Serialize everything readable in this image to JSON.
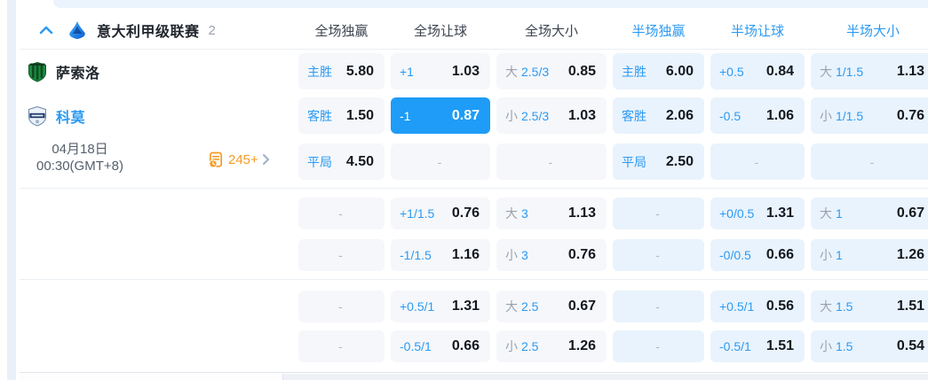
{
  "colors": {
    "accent_blue": "#2b9af3",
    "selected_cell_bg": "#1e9cf7",
    "markets_orange": "#f59a23",
    "home_badge_green": "#1b8a3f",
    "away_badge_navy": "#1d3a6b"
  },
  "header": {
    "league_title": "意大利甲级联赛",
    "match_count": "2",
    "columns": [
      "全场独赢",
      "全场让球",
      "全场大小",
      "半场独赢",
      "半场让球",
      "半场大小"
    ]
  },
  "match": {
    "home_team": "萨索洛",
    "away_team": "科莫",
    "date": "04月18日",
    "time": "00:30(GMT+8)",
    "more_markets": "245+"
  },
  "odds_rows": [
    {
      "cells": [
        {
          "label": "主胜",
          "value": "5.80"
        },
        {
          "label": "+1",
          "value": "1.03"
        },
        {
          "prefix": "大",
          "label": "2.5/3",
          "value": "0.85"
        },
        {
          "label": "主胜",
          "value": "6.00"
        },
        {
          "label": "+0.5",
          "value": "0.84"
        },
        {
          "prefix": "大",
          "label": "1/1.5",
          "value": "1.13"
        }
      ]
    },
    {
      "cells": [
        {
          "label": "客胜",
          "value": "1.50"
        },
        {
          "label": "-1",
          "value": "0.87",
          "highlight": true
        },
        {
          "prefix": "小",
          "label": "2.5/3",
          "value": "1.03"
        },
        {
          "label": "客胜",
          "value": "2.06"
        },
        {
          "label": "-0.5",
          "value": "1.06"
        },
        {
          "prefix": "小",
          "label": "1/1.5",
          "value": "0.76"
        }
      ]
    },
    {
      "cells": [
        {
          "label": "平局",
          "value": "4.50"
        },
        {
          "value": "-"
        },
        {
          "value": "-"
        },
        {
          "label": "平局",
          "value": "2.50"
        },
        {
          "value": "-"
        },
        {
          "value": "-"
        }
      ]
    },
    {
      "cells": [
        {
          "value": "-"
        },
        {
          "label": "+1/1.5",
          "value": "0.76"
        },
        {
          "prefix": "大",
          "label": "3",
          "value": "1.13"
        },
        {
          "value": "-"
        },
        {
          "label": "+0/0.5",
          "value": "1.31"
        },
        {
          "prefix": "大",
          "label": "1",
          "value": "0.67"
        }
      ]
    },
    {
      "cells": [
        {
          "value": "-"
        },
        {
          "label": "-1/1.5",
          "value": "1.16"
        },
        {
          "prefix": "小",
          "label": "3",
          "value": "0.76"
        },
        {
          "value": "-"
        },
        {
          "label": "-0/0.5",
          "value": "0.66"
        },
        {
          "prefix": "小",
          "label": "1",
          "value": "1.26"
        }
      ]
    },
    {
      "cells": [
        {
          "value": "-"
        },
        {
          "label": "+0.5/1",
          "value": "1.31"
        },
        {
          "prefix": "大",
          "label": "2.5",
          "value": "0.67"
        },
        {
          "value": "-"
        },
        {
          "label": "+0.5/1",
          "value": "0.56"
        },
        {
          "prefix": "大",
          "label": "1.5",
          "value": "1.51"
        }
      ]
    },
    {
      "cells": [
        {
          "value": "-"
        },
        {
          "label": "-0.5/1",
          "value": "0.66"
        },
        {
          "prefix": "小",
          "label": "2.5",
          "value": "1.26"
        },
        {
          "value": "-"
        },
        {
          "label": "-0.5/1",
          "value": "1.51"
        },
        {
          "prefix": "小",
          "label": "1.5",
          "value": "0.54"
        }
      ]
    }
  ]
}
